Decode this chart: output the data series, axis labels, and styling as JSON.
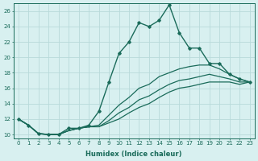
{
  "xlabel": "Humidex (Indice chaleur)",
  "bg_color": "#d8f0f0",
  "grid_color": "#b8dada",
  "line_color": "#1a6b5a",
  "xlim": [
    -0.5,
    23.5
  ],
  "ylim": [
    9.5,
    27
  ],
  "yticks": [
    10,
    12,
    14,
    16,
    18,
    20,
    22,
    24,
    26
  ],
  "xticks": [
    0,
    1,
    2,
    3,
    4,
    5,
    6,
    7,
    8,
    9,
    10,
    11,
    12,
    13,
    14,
    15,
    16,
    17,
    18,
    19,
    20,
    21,
    22,
    23
  ],
  "line1_x": [
    0,
    1,
    2,
    3,
    4,
    5,
    6,
    7,
    8,
    9,
    10,
    11,
    12,
    13,
    14,
    15,
    16,
    17,
    18,
    19,
    20,
    21,
    22,
    23
  ],
  "line1_y": [
    12,
    11.2,
    10.1,
    10,
    10,
    10.8,
    10.8,
    11.2,
    13,
    16.8,
    20.5,
    22,
    24.5,
    24,
    24.8,
    26.8,
    23.2,
    21.2,
    21.2,
    19.2,
    19.2,
    17.8,
    17.2,
    16.8
  ],
  "line2_y": [
    12,
    11.2,
    10.1,
    10,
    10,
    10.5,
    10.8,
    11,
    11,
    11.5,
    12,
    12.8,
    13.5,
    14,
    14.8,
    15.5,
    16,
    16.2,
    16.5,
    16.8,
    16.8,
    16.8,
    16.5,
    16.8
  ],
  "line3_y": [
    12,
    11.2,
    10.1,
    10,
    10,
    10.5,
    10.8,
    11,
    11,
    11.8,
    12.8,
    13.5,
    14.5,
    15,
    15.8,
    16.5,
    17,
    17.2,
    17.5,
    17.8,
    17.5,
    17.2,
    16.8,
    16.8
  ],
  "line4_y": [
    12,
    11.2,
    10.1,
    10,
    10,
    10.5,
    10.8,
    11,
    11.2,
    12.5,
    13.8,
    14.8,
    16,
    16.5,
    17.5,
    18,
    18.5,
    18.8,
    19,
    19,
    18.5,
    17.8,
    17.2,
    16.8
  ]
}
